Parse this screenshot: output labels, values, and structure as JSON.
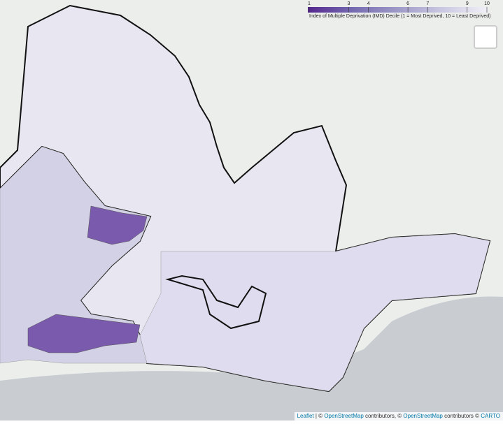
{
  "legend": {
    "title": "Index of Multiple Deprivation (IMD) Decile (1 = Most Deprived, 10 = Least Deprived)",
    "range": [
      1,
      10
    ],
    "ticks": [
      1,
      3,
      4,
      6,
      7,
      9,
      10
    ],
    "colors": [
      "#54278f",
      "#756bb1",
      "#9e9ac8",
      "#cbc9e2",
      "#f2f0f7"
    ]
  },
  "attribution": {
    "leaflet": "Leaflet",
    "sep1": "| ©",
    "osm1": "OpenStreetMap",
    "text1": "contributors, ©",
    "osm2": "OpenStreetMap",
    "text2": "contributors ©",
    "carto": "CARTO"
  }
}
